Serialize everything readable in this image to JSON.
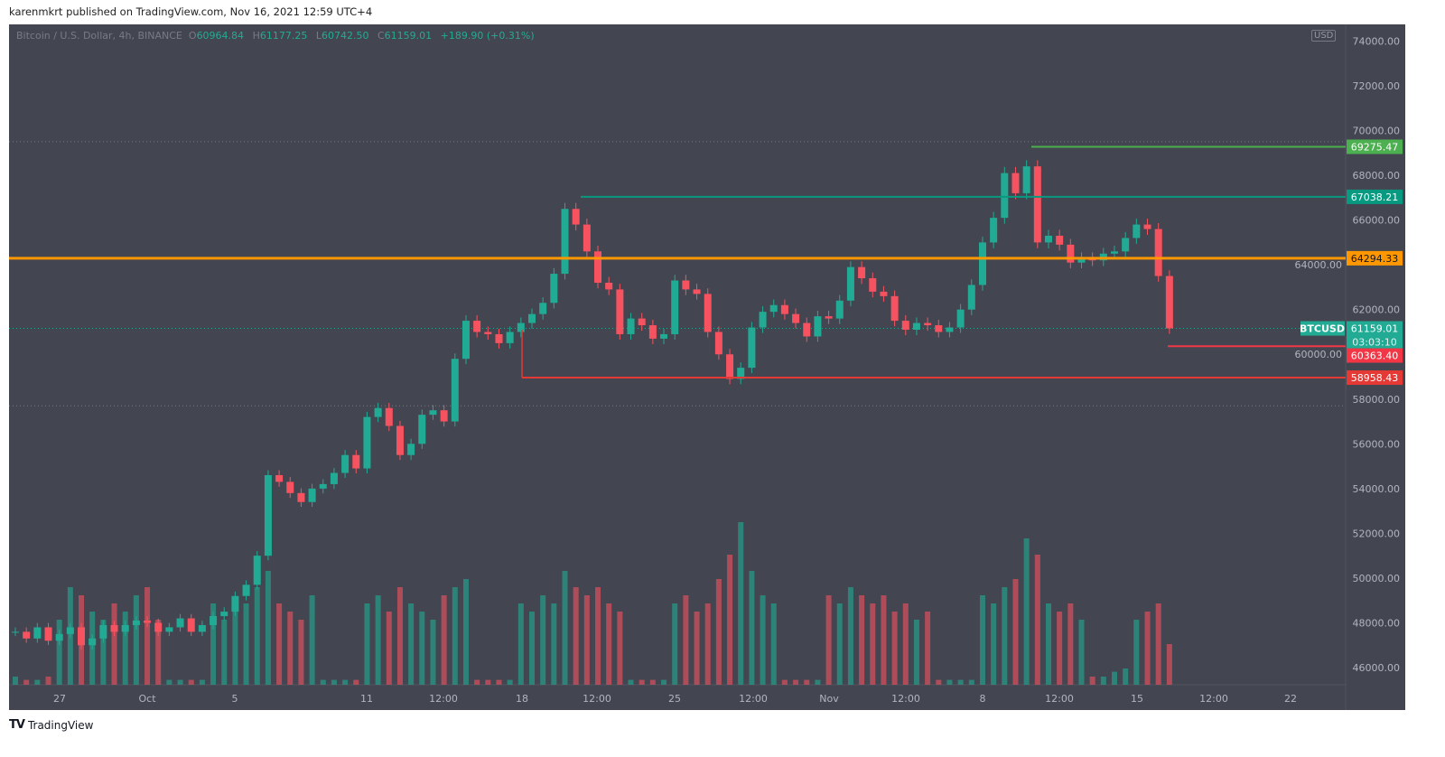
{
  "header": {
    "published": "karenmkrt published on TradingView.com, Nov 16, 2021 12:59 UTC+4"
  },
  "legend": {
    "symbol": "Bitcoin / U.S. Dollar, 4h, BINANCE",
    "o_label": "O",
    "o": "60964.84",
    "h_label": "H",
    "h": "61177.25",
    "l_label": "L",
    "l": "60742.50",
    "c_label": "C",
    "c": "61159.01",
    "change": "+189.90 (+0.31%)"
  },
  "currency": "USD",
  "footer": {
    "brand": "TradingView",
    "logo": "TV"
  },
  "colors": {
    "up": "#22ab94",
    "down": "#f7525f",
    "background": "#434651",
    "orange": "#ff9800",
    "green": "#4caf50",
    "teal": "#089981",
    "red": "#f23645"
  },
  "chart_data": {
    "type": "candlestick",
    "title": "Bitcoin / U.S. Dollar, 4h, BINANCE",
    "ylim": [
      45000,
      75000
    ],
    "y_ticks": [
      "46000.00",
      "48000.00",
      "50000.00",
      "52000.00",
      "54000.00",
      "56000.00",
      "58000.00",
      "60000.00",
      "62000.00",
      "64000.00",
      "66000.00",
      "68000.00",
      "70000.00",
      "72000.00",
      "74000.00"
    ],
    "x_ticks": [
      "27",
      "Oct",
      "5",
      "11",
      "12:00",
      "18",
      "12:00",
      "25",
      "12:00",
      "Nov",
      "12:00",
      "8",
      "12:00",
      "15",
      "12:00",
      "22"
    ],
    "start": "2021-09-25",
    "interval": "12h (approximated)",
    "closes": [
      47600,
      47300,
      47800,
      47200,
      47500,
      47800,
      47000,
      47300,
      47900,
      47600,
      47900,
      48100,
      48000,
      47600,
      47800,
      48200,
      47600,
      47900,
      48300,
      48500,
      49200,
      49700,
      51000,
      54600,
      54300,
      53800,
      53400,
      54000,
      54200,
      54700,
      55500,
      54900,
      57200,
      57600,
      56800,
      55500,
      56000,
      57300,
      57500,
      57000,
      59800,
      61500,
      61000,
      60900,
      60500,
      61000,
      61400,
      61800,
      62300,
      63600,
      66500,
      65800,
      64600,
      63200,
      62900,
      60900,
      61600,
      61300,
      60700,
      60900,
      63300,
      62900,
      62700,
      61000,
      60000,
      58900,
      59400,
      61200,
      61900,
      62200,
      61800,
      61400,
      60800,
      61700,
      61600,
      62400,
      63900,
      63400,
      62800,
      62600,
      61500,
      61100,
      61400,
      61300,
      61000,
      61200,
      62000,
      63100,
      65000,
      66100,
      68100,
      67200,
      68400,
      65000,
      65300,
      64900,
      64100,
      64300,
      64200,
      64500,
      64600,
      65200,
      65800,
      65600,
      63500,
      61159.01
    ],
    "volume_relative": [
      5,
      3,
      3,
      5,
      40,
      60,
      55,
      45,
      40,
      50,
      45,
      55,
      60,
      40,
      3,
      3,
      3,
      3,
      50,
      40,
      45,
      50,
      60,
      70,
      50,
      45,
      40,
      55,
      3,
      3,
      3,
      3,
      50,
      55,
      45,
      60,
      50,
      45,
      40,
      55,
      60,
      65,
      3,
      3,
      3,
      3,
      50,
      45,
      55,
      50,
      70,
      60,
      55,
      60,
      50,
      45,
      3,
      3,
      3,
      3,
      50,
      55,
      45,
      50,
      65,
      80,
      100,
      70,
      55,
      50,
      3,
      3,
      3,
      3,
      55,
      50,
      60,
      55,
      50,
      55,
      45,
      50,
      40,
      45,
      3,
      3,
      3,
      3,
      55,
      50,
      60,
      65,
      90,
      80,
      50,
      45,
      50,
      40,
      5,
      5,
      8,
      10,
      40,
      45,
      50,
      25
    ],
    "levels": [
      {
        "price": 69275.47,
        "label": "69275.47",
        "color": "#4caf50",
        "from": "2021-11-10"
      },
      {
        "price": 67038.21,
        "label": "67038.21",
        "color": "#089981",
        "from": "2021-10-20"
      },
      {
        "price": 64294.33,
        "label": "64294.33",
        "color": "#ff9800",
        "from": "start"
      },
      {
        "price": 60363.4,
        "label": "60363.40",
        "color": "#f23645",
        "from": "2021-11-16"
      },
      {
        "price": 58958.43,
        "label": "58958.43",
        "color": "#e53935",
        "from": "2021-10-18"
      }
    ],
    "last_price": {
      "symbol": "BTCUSD",
      "price": "61159.01",
      "countdown": "03:03:10"
    }
  }
}
